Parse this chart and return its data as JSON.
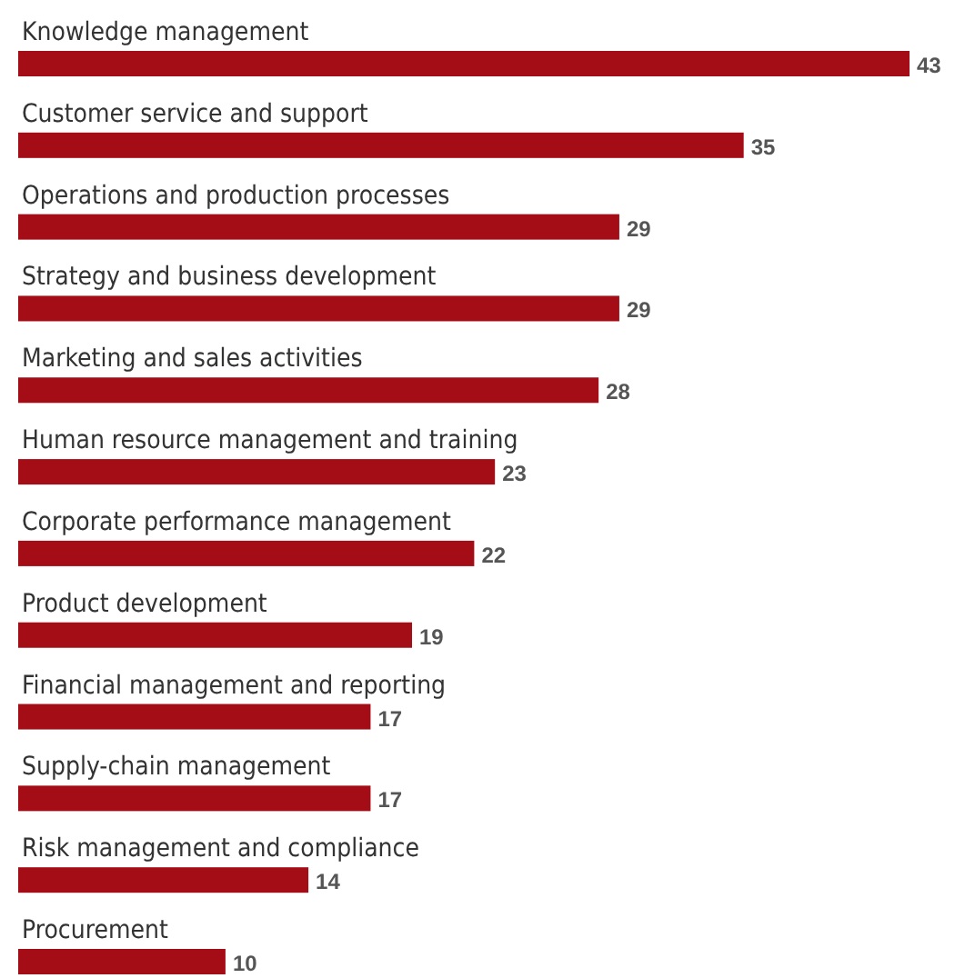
{
  "chart_data": {
    "type": "bar",
    "orientation": "horizontal",
    "categories": [
      "Knowledge management",
      "Customer service and support",
      "Operations and production processes",
      "Strategy and business development",
      "Marketing and sales activities",
      "Human resource management and training",
      "Corporate performance management",
      "Product development",
      "Financial management and reporting",
      "Supply-chain management",
      "Risk management and compliance",
      "Procurement"
    ],
    "values": [
      43,
      35,
      29,
      29,
      28,
      23,
      22,
      19,
      17,
      17,
      14,
      10
    ],
    "color": "#a50d16",
    "data_labels": true
  }
}
